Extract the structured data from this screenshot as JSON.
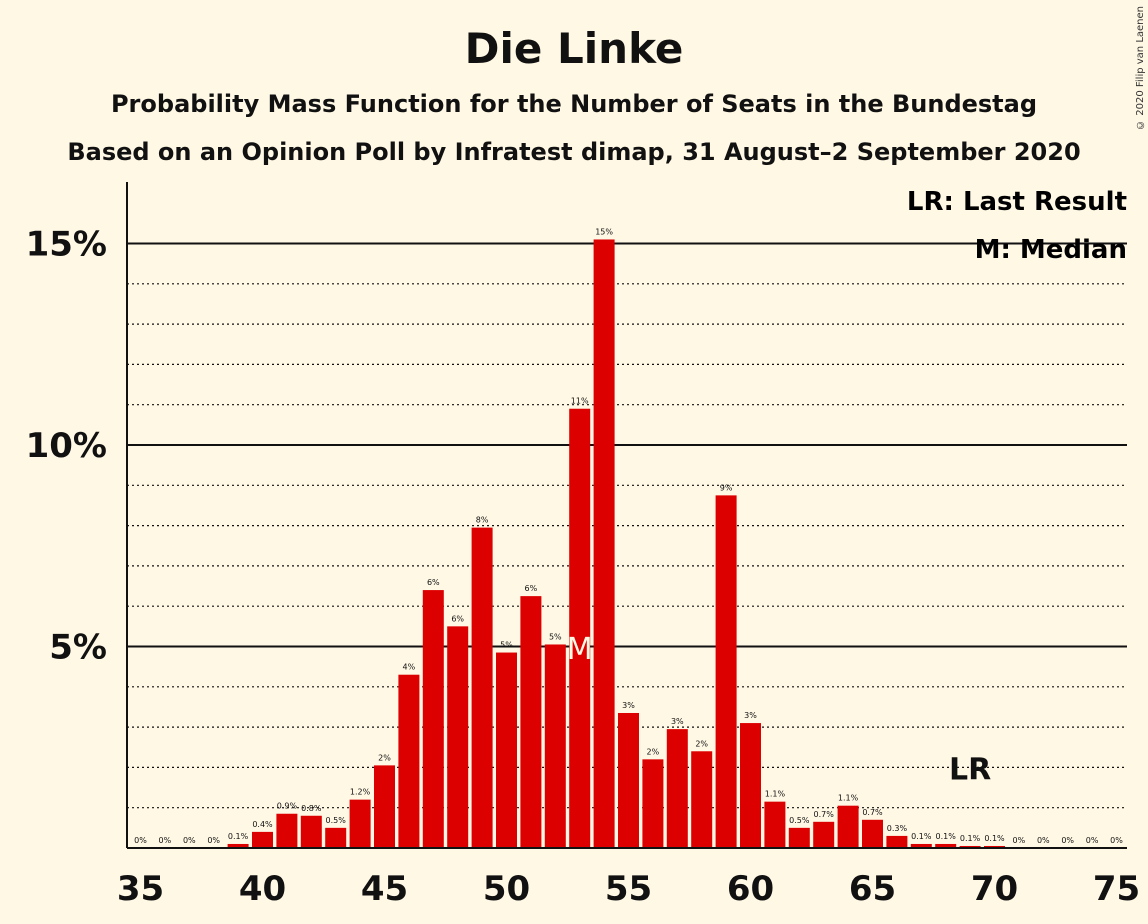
{
  "title": "Die Linke",
  "subtitle": "Probability Mass Function for the Number of Seats in the Bundestag",
  "subtitle2": "Based on an Opinion Poll by Infratest dimap, 31 August–2 September 2020",
  "copyright": "© 2020 Filip van Laenen",
  "legend": {
    "last_result": "LR: Last Result",
    "median": "M: Median"
  },
  "colors": {
    "bar": "#DD0000",
    "background": "#FFF8E5",
    "text": "#111111"
  },
  "chart_data": {
    "type": "bar",
    "title": "Die Linke",
    "xlabel": "",
    "ylabel": "",
    "x": [
      35,
      36,
      37,
      38,
      39,
      40,
      41,
      42,
      43,
      44,
      45,
      46,
      47,
      48,
      49,
      50,
      51,
      52,
      53,
      54,
      55,
      56,
      57,
      58,
      59,
      60,
      61,
      62,
      63,
      64,
      65,
      66,
      67,
      68,
      69,
      70,
      71,
      72,
      73,
      74,
      75
    ],
    "values": [
      0,
      0,
      0,
      0,
      0.1,
      0.4,
      0.85,
      0.8,
      0.5,
      1.2,
      2.05,
      4.3,
      6.4,
      5.5,
      7.95,
      4.85,
      6.25,
      5.05,
      10.9,
      15.1,
      3.35,
      2.2,
      2.95,
      2.4,
      8.75,
      3.1,
      1.15,
      0.5,
      0.65,
      1.05,
      0.7,
      0.3,
      0.1,
      0.1,
      0.05,
      0.05,
      0,
      0,
      0,
      0,
      0
    ],
    "data_labels": [
      "0%",
      "0%",
      "0%",
      "0%",
      "0.1%",
      "0.4%",
      "0.9%",
      "0.8%",
      "0.5%",
      "1.2%",
      "2%",
      "4%",
      "6%",
      "6%",
      "8%",
      "5%",
      "6%",
      "5%",
      "11%",
      "15%",
      "3%",
      "2%",
      "3%",
      "2%",
      "9%",
      "3%",
      "1.1%",
      "0.5%",
      "0.7%",
      "1.1%",
      "0.7%",
      "0.3%",
      "0.1%",
      "0.1%",
      "0.1%",
      "0.1%",
      "0%",
      "0%",
      "0%",
      "0%",
      "0%"
    ],
    "x_ticks": [
      "35",
      "40",
      "45",
      "50",
      "55",
      "60",
      "65",
      "70",
      "75"
    ],
    "x_tick_values": [
      35,
      40,
      45,
      50,
      55,
      60,
      65,
      70,
      75
    ],
    "y_ticks": [
      "5%",
      "10%",
      "15%"
    ],
    "y_tick_values": [
      5,
      10,
      15
    ],
    "ylim": [
      0,
      16.5
    ],
    "median": 53,
    "median_label": "M",
    "last_result": 69,
    "last_result_label": "LR",
    "grid": "major solid, minor dotted every 1%",
    "legend_position": "top-right"
  }
}
